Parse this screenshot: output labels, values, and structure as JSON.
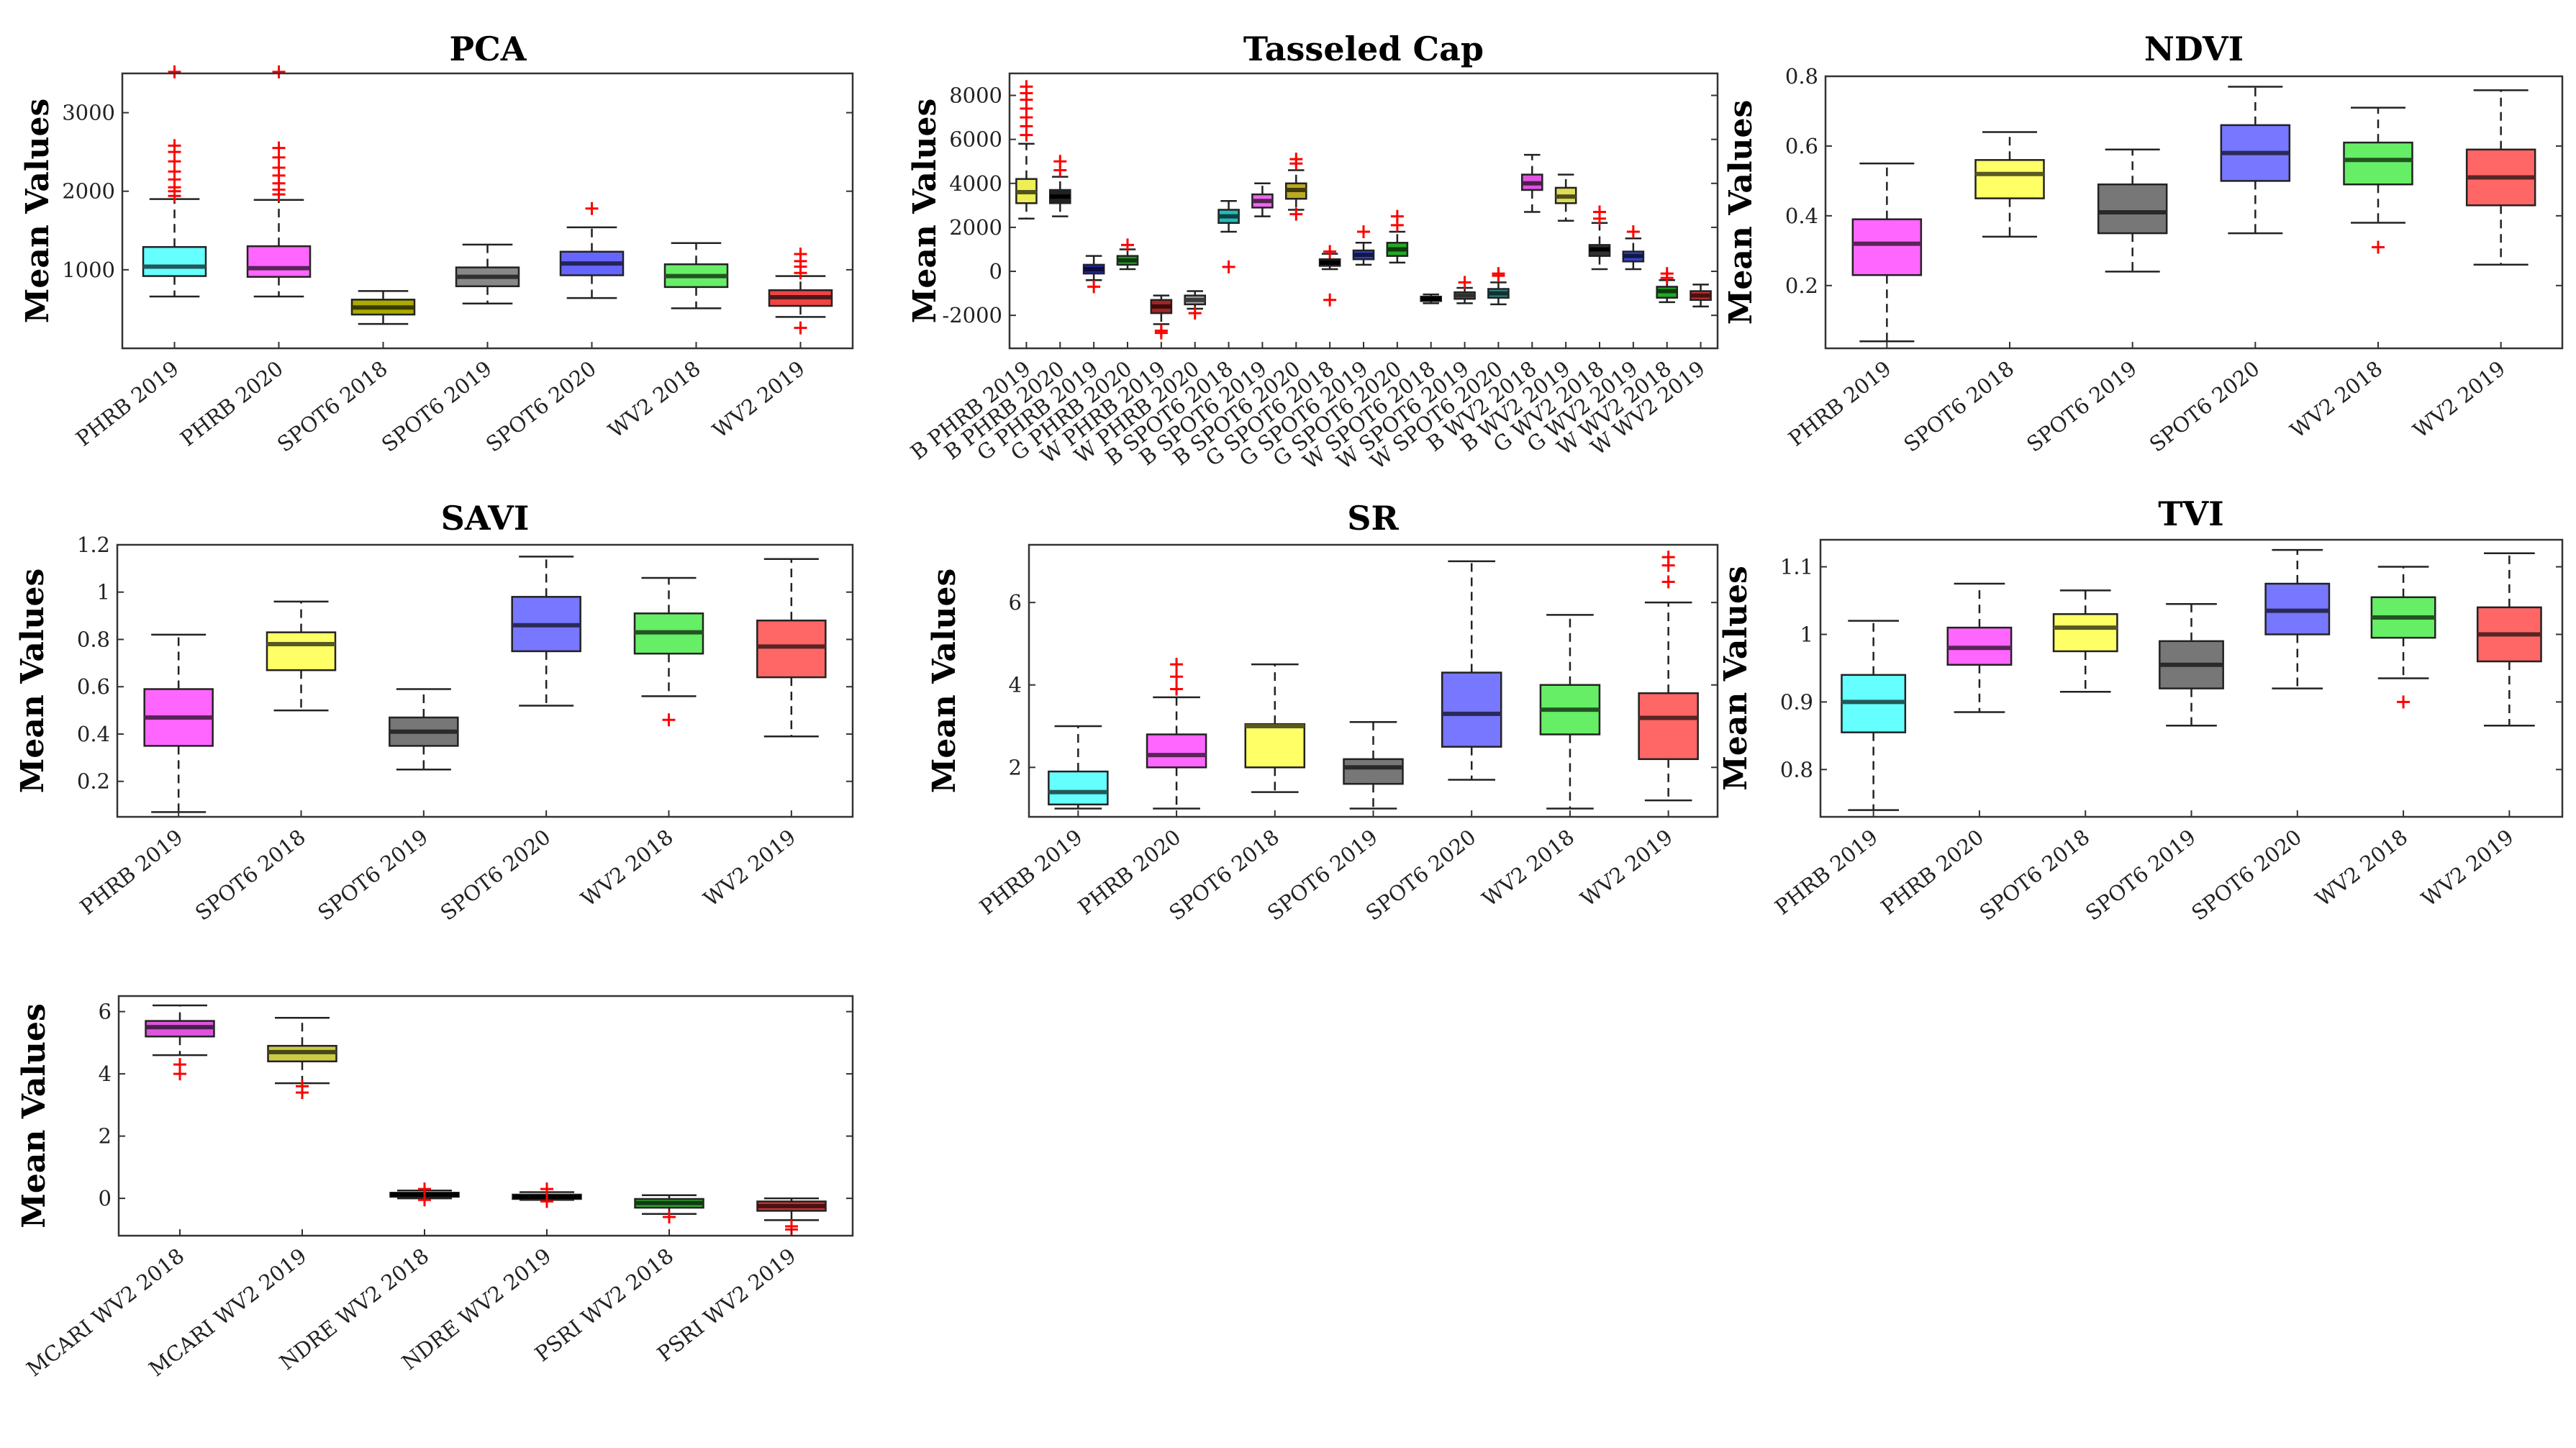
{
  "chart_data": [
    {
      "type": "box",
      "title": "PCA",
      "ylabel": "Mean Values",
      "ylim": [
        0,
        3500
      ],
      "yticks": [
        1000,
        2000,
        3000
      ],
      "categories": [
        "PHRB 2019",
        "PHRB 2020",
        "SPOT6 2018",
        "SPOT6 2019",
        "SPOT6 2020",
        "WV2 2018",
        "WV2 2019"
      ],
      "colors": [
        "#66ffff",
        "#ff66ff",
        "#aaaa00",
        "#888888",
        "#6666ff",
        "#66ee66",
        "#ee4444"
      ],
      "boxes": [
        {
          "q1": 920,
          "med": 1040,
          "q3": 1290,
          "wlo": 660,
          "whi": 1900,
          "out": [
            1940,
            2000,
            2050,
            2150,
            2250,
            2380,
            2500,
            2580,
            3520
          ]
        },
        {
          "q1": 910,
          "med": 1020,
          "q3": 1300,
          "wlo": 660,
          "whi": 1890,
          "out": [
            1960,
            2020,
            2100,
            2200,
            2300,
            2430,
            2550,
            3520
          ]
        },
        {
          "q1": 430,
          "med": 520,
          "q3": 620,
          "wlo": 310,
          "whi": 730,
          "out": []
        },
        {
          "q1": 790,
          "med": 910,
          "q3": 1030,
          "wlo": 570,
          "whi": 1320,
          "out": []
        },
        {
          "q1": 930,
          "med": 1080,
          "q3": 1230,
          "wlo": 640,
          "whi": 1540,
          "out": [
            1780
          ]
        },
        {
          "q1": 780,
          "med": 920,
          "q3": 1070,
          "wlo": 510,
          "whi": 1340,
          "out": []
        },
        {
          "q1": 540,
          "med": 650,
          "q3": 740,
          "wlo": 400,
          "whi": 920,
          "out": [
            960,
            1040,
            1110,
            1200,
            260
          ]
        }
      ]
    },
    {
      "type": "box",
      "title": "Tasseled Cap",
      "ylabel": "Mean Values",
      "ylim": [
        -3500,
        9000
      ],
      "yticks": [
        -2000,
        0,
        2000,
        4000,
        6000,
        8000
      ],
      "categories": [
        "B PHRB 2019",
        "B PHRB 2020",
        "G PHRB 2019",
        "G PHRB 2020",
        "W PHRB 2019",
        "W PHRB 2020",
        "B SPOT6 2018",
        "B SPOT6 2019",
        "B SPOT6 2020",
        "G SPOT6 2018",
        "G SPOT6 2019",
        "G SPOT6 2020",
        "W SPOT6 2018",
        "W SPOT6 2019",
        "W SPOT6 2020",
        "B WV2 2018",
        "B WV2 2019",
        "G WV2 2018",
        "G WV2 2019",
        "W WV2 2018",
        "W WV2 2019"
      ],
      "colors": [
        "#eeee55",
        "#222222",
        "#2222aa",
        "#22aa22",
        "#aa2222",
        "#aaaaaa",
        "#22bbbb",
        "#ee66ee",
        "#bbaa22",
        "#222222",
        "#3344cc",
        "#22aa22",
        "#444444",
        "#888888",
        "#338888",
        "#dd55dd",
        "#dddd55",
        "#333333",
        "#3344cc",
        "#22aa22",
        "#cc3333"
      ],
      "boxes": [
        {
          "q1": 3100,
          "med": 3600,
          "q3": 4200,
          "wlo": 2400,
          "whi": 5800,
          "out": [
            6200,
            6600,
            7000,
            7400,
            7800,
            8100,
            8400
          ]
        },
        {
          "q1": 3100,
          "med": 3400,
          "q3": 3700,
          "wlo": 2500,
          "whi": 4300,
          "out": [
            4600,
            5000
          ]
        },
        {
          "q1": -100,
          "med": 100,
          "q3": 300,
          "wlo": -400,
          "whi": 700,
          "out": [
            -700
          ]
        },
        {
          "q1": 300,
          "med": 500,
          "q3": 700,
          "wlo": 100,
          "whi": 1000,
          "out": [
            1200
          ]
        },
        {
          "q1": -1900,
          "med": -1600,
          "q3": -1300,
          "wlo": -2400,
          "whi": -1100,
          "out": [
            -2700,
            -2800
          ]
        },
        {
          "q1": -1500,
          "med": -1300,
          "q3": -1100,
          "wlo": -1700,
          "whi": -900,
          "out": [
            -1900
          ]
        },
        {
          "q1": 2200,
          "med": 2500,
          "q3": 2800,
          "wlo": 1800,
          "whi": 3200,
          "out": [
            200
          ]
        },
        {
          "q1": 2900,
          "med": 3200,
          "q3": 3500,
          "wlo": 2500,
          "whi": 4000,
          "out": []
        },
        {
          "q1": 3300,
          "med": 3700,
          "q3": 4000,
          "wlo": 2800,
          "whi": 4600,
          "out": [
            4900,
            5100,
            2600
          ]
        },
        {
          "q1": 250,
          "med": 400,
          "q3": 550,
          "wlo": 100,
          "whi": 800,
          "out": [
            900,
            -1300
          ]
        },
        {
          "q1": 550,
          "med": 750,
          "q3": 950,
          "wlo": 300,
          "whi": 1300,
          "out": [
            1800
          ]
        },
        {
          "q1": 700,
          "med": 1000,
          "q3": 1300,
          "wlo": 400,
          "whi": 1800,
          "out": [
            2100,
            2500
          ]
        },
        {
          "q1": -1350,
          "med": -1250,
          "q3": -1150,
          "wlo": -1450,
          "whi": -1050,
          "out": []
        },
        {
          "q1": -1250,
          "med": -1100,
          "q3": -950,
          "wlo": -1450,
          "whi": -750,
          "out": [
            -500
          ]
        },
        {
          "q1": -1200,
          "med": -1000,
          "q3": -800,
          "wlo": -1500,
          "whi": -500,
          "out": [
            -100,
            -200
          ]
        },
        {
          "q1": 3700,
          "med": 4000,
          "q3": 4400,
          "wlo": 2700,
          "whi": 5300,
          "out": []
        },
        {
          "q1": 3100,
          "med": 3400,
          "q3": 3800,
          "wlo": 2300,
          "whi": 4400,
          "out": []
        },
        {
          "q1": 700,
          "med": 1000,
          "q3": 1200,
          "wlo": 100,
          "whi": 2200,
          "out": [
            2400,
            2700
          ]
        },
        {
          "q1": 450,
          "med": 700,
          "q3": 900,
          "wlo": 100,
          "whi": 1500,
          "out": [
            1800
          ]
        },
        {
          "q1": -1200,
          "med": -900,
          "q3": -700,
          "wlo": -1400,
          "whi": -400,
          "out": [
            -100,
            -300
          ]
        },
        {
          "q1": -1300,
          "med": -1100,
          "q3": -900,
          "wlo": -1600,
          "whi": -600,
          "out": []
        }
      ]
    },
    {
      "type": "box",
      "title": "NDVI",
      "ylabel": "Mean Values",
      "ylim": [
        0.02,
        0.8
      ],
      "yticks": [
        0.2,
        0.4,
        0.6,
        0.8
      ],
      "categories": [
        "PHRB 2019",
        "SPOT6 2018",
        "SPOT6 2019",
        "SPOT6 2020",
        "WV2 2018",
        "WV2 2019"
      ],
      "colors": [
        "#ff66ff",
        "#ffff66",
        "#777777",
        "#7777ff",
        "#66ee66",
        "#ff6666"
      ],
      "boxes": [
        {
          "q1": 0.23,
          "med": 0.32,
          "q3": 0.39,
          "wlo": 0.04,
          "whi": 0.55,
          "out": []
        },
        {
          "q1": 0.45,
          "med": 0.52,
          "q3": 0.56,
          "wlo": 0.34,
          "whi": 0.64,
          "out": []
        },
        {
          "q1": 0.35,
          "med": 0.41,
          "q3": 0.49,
          "wlo": 0.24,
          "whi": 0.59,
          "out": []
        },
        {
          "q1": 0.5,
          "med": 0.58,
          "q3": 0.66,
          "wlo": 0.35,
          "whi": 0.77,
          "out": []
        },
        {
          "q1": 0.49,
          "med": 0.56,
          "q3": 0.61,
          "wlo": 0.38,
          "whi": 0.71,
          "out": [
            0.31
          ]
        },
        {
          "q1": 0.43,
          "med": 0.51,
          "q3": 0.59,
          "wlo": 0.26,
          "whi": 0.76,
          "out": []
        }
      ]
    },
    {
      "type": "box",
      "title": "SAVI",
      "ylabel": "Mean Values",
      "ylim": [
        0.05,
        1.2
      ],
      "yticks": [
        0.2,
        0.4,
        0.6,
        0.8,
        1,
        1.2
      ],
      "categories": [
        "PHRB 2019",
        "SPOT6 2018",
        "SPOT6 2019",
        "SPOT6 2020",
        "WV2 2018",
        "WV2 2019"
      ],
      "colors": [
        "#ff66ff",
        "#ffff66",
        "#777777",
        "#7777ff",
        "#66ee66",
        "#ff6666"
      ],
      "boxes": [
        {
          "q1": 0.35,
          "med": 0.47,
          "q3": 0.59,
          "wlo": 0.07,
          "whi": 0.82,
          "out": []
        },
        {
          "q1": 0.67,
          "med": 0.78,
          "q3": 0.83,
          "wlo": 0.5,
          "whi": 0.96,
          "out": []
        },
        {
          "q1": 0.35,
          "med": 0.41,
          "q3": 0.47,
          "wlo": 0.25,
          "whi": 0.59,
          "out": []
        },
        {
          "q1": 0.75,
          "med": 0.86,
          "q3": 0.98,
          "wlo": 0.52,
          "whi": 1.15,
          "out": []
        },
        {
          "q1": 0.74,
          "med": 0.83,
          "q3": 0.91,
          "wlo": 0.56,
          "whi": 1.06,
          "out": [
            0.46
          ]
        },
        {
          "q1": 0.64,
          "med": 0.77,
          "q3": 0.88,
          "wlo": 0.39,
          "whi": 1.14,
          "out": []
        }
      ]
    },
    {
      "type": "box",
      "title": "SR",
      "ylabel": "Mean Values",
      "ylim": [
        0.8,
        7.4
      ],
      "yticks": [
        2,
        4,
        6
      ],
      "categories": [
        "PHRB 2019",
        "PHRB 2020",
        "SPOT6 2018",
        "SPOT6 2019",
        "SPOT6 2020",
        "WV2 2018",
        "WV2 2019"
      ],
      "colors": [
        "#66ffff",
        "#ff66ff",
        "#ffff66",
        "#777777",
        "#7777ff",
        "#66ee66",
        "#ff6666"
      ],
      "boxes": [
        {
          "q1": 1.1,
          "med": 1.4,
          "q3": 1.9,
          "wlo": 1.0,
          "whi": 3.0,
          "out": []
        },
        {
          "q1": 2.0,
          "med": 2.3,
          "q3": 2.8,
          "wlo": 1.0,
          "whi": 3.7,
          "out": [
            3.9,
            4.2,
            4.5
          ]
        },
        {
          "q1": 2.0,
          "med": 3.0,
          "q3": 3.05,
          "wlo": 1.4,
          "whi": 4.5,
          "out": []
        },
        {
          "q1": 1.6,
          "med": 2.0,
          "q3": 2.2,
          "wlo": 1.0,
          "whi": 3.1,
          "out": []
        },
        {
          "q1": 2.5,
          "med": 3.3,
          "q3": 4.3,
          "wlo": 1.7,
          "whi": 7.0,
          "out": []
        },
        {
          "q1": 2.8,
          "med": 3.4,
          "q3": 4.0,
          "wlo": 1.0,
          "whi": 5.7,
          "out": []
        },
        {
          "q1": 2.2,
          "med": 3.2,
          "q3": 3.8,
          "wlo": 1.2,
          "whi": 6.0,
          "out": [
            6.5,
            6.9,
            7.1
          ]
        }
      ]
    },
    {
      "type": "box",
      "title": "TVI",
      "ylabel": "Mean Values",
      "ylim": [
        0.73,
        1.14
      ],
      "yticks": [
        0.8,
        0.9,
        1,
        1.1
      ],
      "categories": [
        "PHRB 2019",
        "PHRB 2020",
        "SPOT6 2018",
        "SPOT6 2019",
        "SPOT6 2020",
        "WV2 2018",
        "WV2 2019"
      ],
      "colors": [
        "#66ffff",
        "#ff66ff",
        "#ffff66",
        "#777777",
        "#7777ff",
        "#66ee66",
        "#ff6666"
      ],
      "boxes": [
        {
          "q1": 0.855,
          "med": 0.9,
          "q3": 0.94,
          "wlo": 0.74,
          "whi": 1.02,
          "out": []
        },
        {
          "q1": 0.955,
          "med": 0.98,
          "q3": 1.01,
          "wlo": 0.885,
          "whi": 1.075,
          "out": []
        },
        {
          "q1": 0.975,
          "med": 1.01,
          "q3": 1.03,
          "wlo": 0.915,
          "whi": 1.065,
          "out": []
        },
        {
          "q1": 0.92,
          "med": 0.955,
          "q3": 0.99,
          "wlo": 0.865,
          "whi": 1.045,
          "out": []
        },
        {
          "q1": 1.0,
          "med": 1.035,
          "q3": 1.075,
          "wlo": 0.92,
          "whi": 1.125,
          "out": []
        },
        {
          "q1": 0.995,
          "med": 1.025,
          "q3": 1.055,
          "wlo": 0.935,
          "whi": 1.1,
          "out": [
            0.9
          ]
        },
        {
          "q1": 0.96,
          "med": 1.0,
          "q3": 1.04,
          "wlo": 0.865,
          "whi": 1.12,
          "out": []
        }
      ]
    },
    {
      "type": "box",
      "title": "",
      "ylabel": "Mean Values",
      "ylim": [
        -1.2,
        6.5
      ],
      "yticks": [
        0,
        2,
        4,
        6
      ],
      "categories": [
        "MCARI WV2 2018",
        "MCARI WV2 2019",
        "NDRE WV2 2018",
        "NDRE WV2 2019",
        "PSRI WV2 2018",
        "PSRI WV2 2019"
      ],
      "colors": [
        "#dd55dd",
        "#cccc44",
        "#222222",
        "#333333",
        "#33aa33",
        "#cc3333"
      ],
      "boxes": [
        {
          "q1": 5.2,
          "med": 5.5,
          "q3": 5.7,
          "wlo": 4.6,
          "whi": 6.2,
          "out": [
            4.0,
            4.3
          ]
        },
        {
          "q1": 4.4,
          "med": 4.7,
          "q3": 4.9,
          "wlo": 3.7,
          "whi": 5.8,
          "out": [
            3.4,
            3.6
          ]
        },
        {
          "q1": 0.05,
          "med": 0.12,
          "q3": 0.18,
          "wlo": 0.0,
          "whi": 0.25,
          "out": [
            0.3,
            -0.05
          ]
        },
        {
          "q1": -0.02,
          "med": 0.05,
          "q3": 0.12,
          "wlo": -0.05,
          "whi": 0.2,
          "out": [
            0.3,
            -0.1
          ]
        },
        {
          "q1": -0.3,
          "med": -0.15,
          "q3": -0.02,
          "wlo": -0.5,
          "whi": 0.1,
          "out": [
            -0.6
          ]
        },
        {
          "q1": -0.4,
          "med": -0.25,
          "q3": -0.1,
          "wlo": -0.7,
          "whi": 0.0,
          "out": [
            -0.9,
            -1.0
          ]
        }
      ]
    }
  ]
}
